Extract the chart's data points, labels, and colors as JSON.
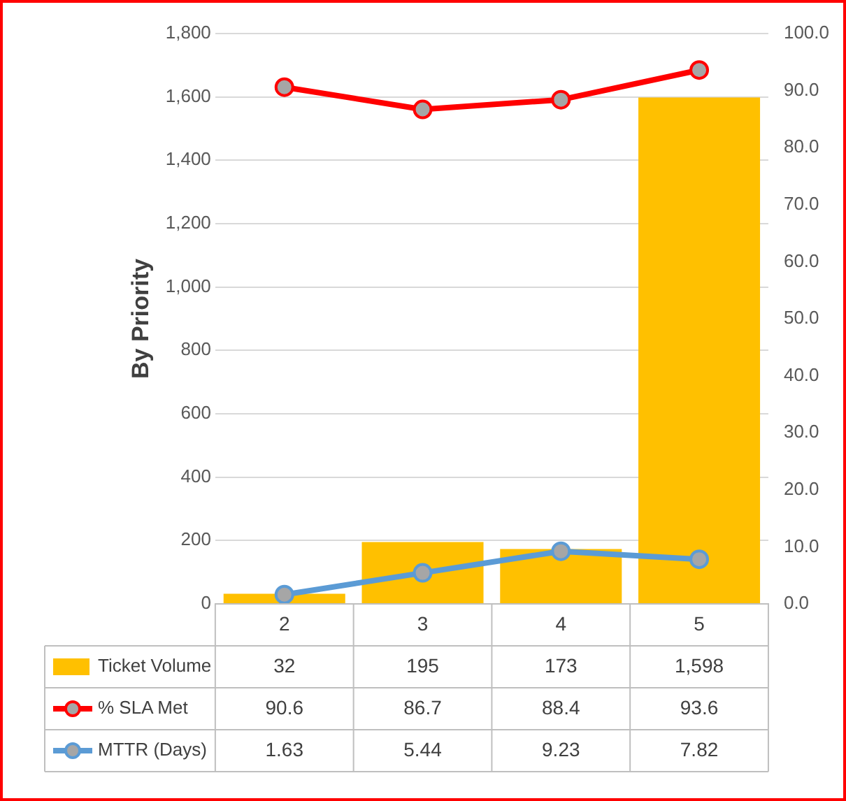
{
  "chart_data": {
    "type": "bar",
    "ylabel": "By Priority",
    "categories": [
      "2",
      "3",
      "4",
      "5"
    ],
    "series": [
      {
        "name": "Ticket Volume",
        "color": "#ffc000",
        "values": [
          32,
          195,
          173,
          1598
        ],
        "value_labels": [
          "32",
          "195",
          "173",
          "1,598"
        ]
      },
      {
        "name": "% SLA Met",
        "type": "line",
        "axis": "y2",
        "color": "#ff0000",
        "values": [
          90.6,
          86.7,
          88.4,
          93.6
        ],
        "value_labels": [
          "90.6",
          "86.7",
          "88.4",
          "93.6"
        ]
      },
      {
        "name": "MTTR (Days)",
        "type": "line",
        "axis": "y2",
        "color": "#5b9bd5",
        "values": [
          1.63,
          5.44,
          9.23,
          7.82
        ],
        "value_labels": [
          "1.63",
          "5.44",
          "9.23",
          "7.82"
        ]
      }
    ],
    "ylim": [
      0,
      1800
    ],
    "yticks": [
      {
        "value": 0,
        "label": "0"
      },
      {
        "value": 200,
        "label": "200"
      },
      {
        "value": 400,
        "label": "400"
      },
      {
        "value": 600,
        "label": "600"
      },
      {
        "value": 800,
        "label": "800"
      },
      {
        "value": 1000,
        "label": "1,000"
      },
      {
        "value": 1200,
        "label": "1,200"
      },
      {
        "value": 1400,
        "label": "1,400"
      },
      {
        "value": 1600,
        "label": "1,600"
      },
      {
        "value": 1800,
        "label": "1,800"
      }
    ],
    "y2lim": [
      0,
      100
    ],
    "y2ticks": [
      {
        "value": 0,
        "label": "0.0"
      },
      {
        "value": 10,
        "label": "10.0"
      },
      {
        "value": 20,
        "label": "20.0"
      },
      {
        "value": 30,
        "label": "30.0"
      },
      {
        "value": 40,
        "label": "40.0"
      },
      {
        "value": 50,
        "label": "50.0"
      },
      {
        "value": 60,
        "label": "60.0"
      },
      {
        "value": 70,
        "label": "70.0"
      },
      {
        "value": 80,
        "label": "80.0"
      },
      {
        "value": 90,
        "label": "90.0"
      },
      {
        "value": 100,
        "label": "100.0"
      }
    ],
    "grid": "y",
    "legend": "bottom",
    "marker": "circle",
    "line_style": "solid"
  }
}
